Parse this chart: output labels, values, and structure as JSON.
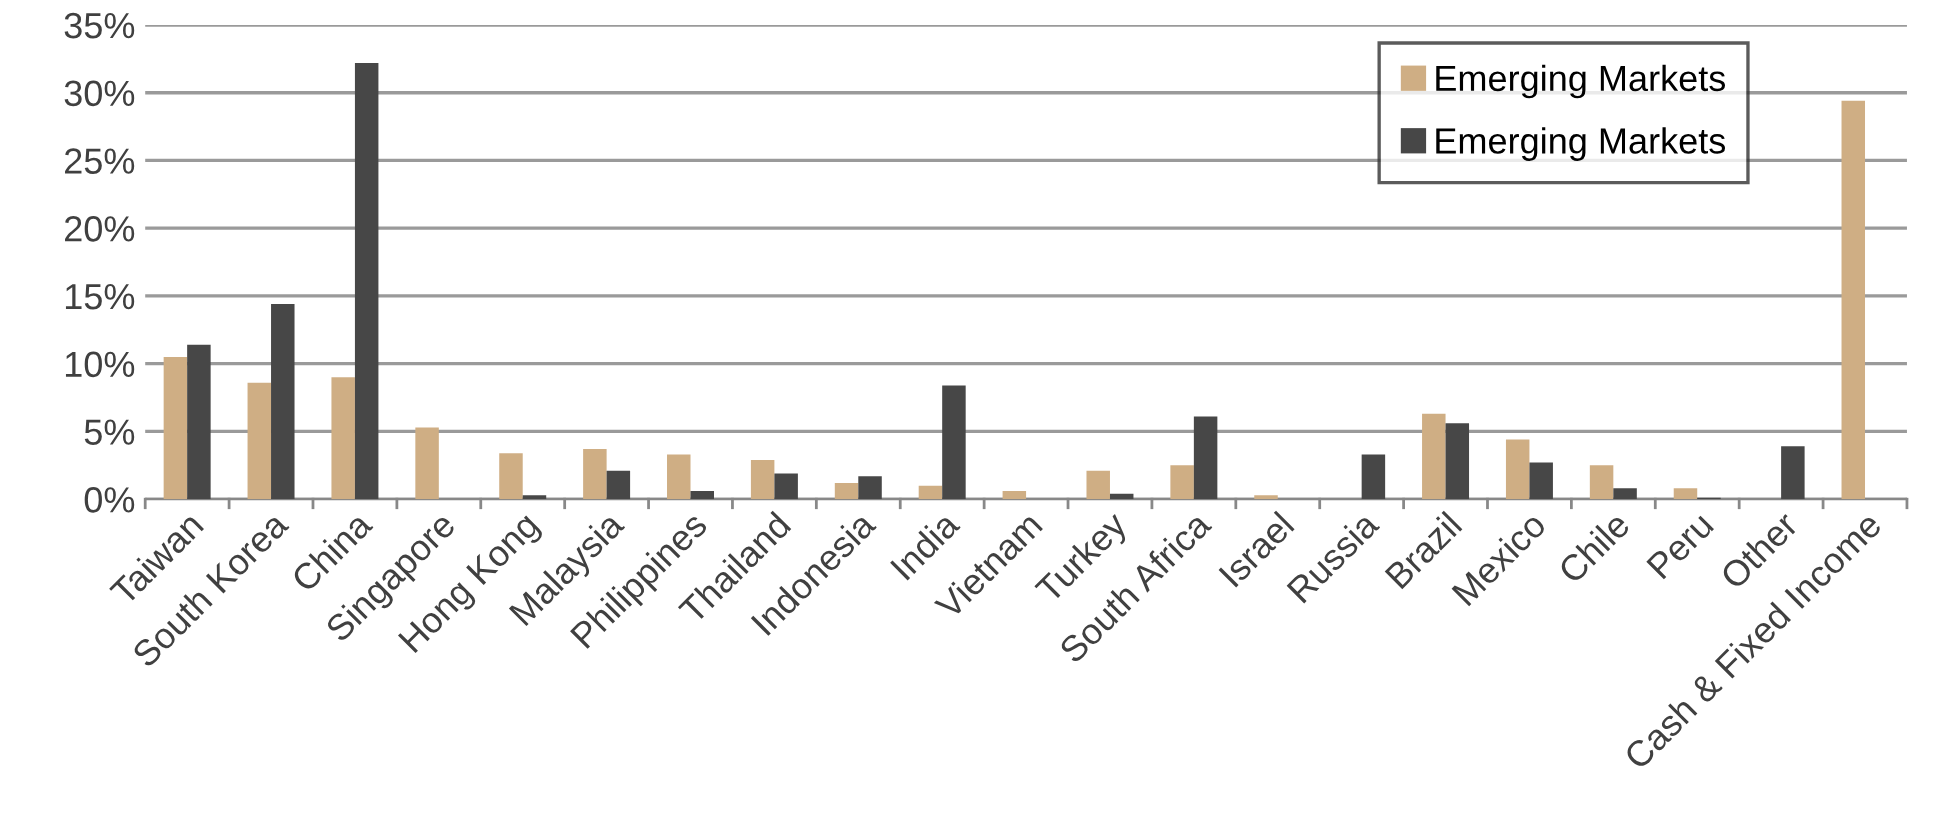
{
  "chart_data": {
    "type": "bar",
    "categories": [
      "Taiwan",
      "South Korea",
      "China",
      "Singapore",
      "Hong Kong",
      "Malaysia",
      "Philippines",
      "Thailand",
      "Indonesia",
      "India",
      "Vietnam",
      "Turkey",
      "South Africa",
      "Israel",
      "Russia",
      "Brazil",
      "Mexico",
      "Chile",
      "Peru",
      "Other",
      "Cash & Fixed Income"
    ],
    "series": [
      {
        "name": "Emerging Markets",
        "color": "#cfae84",
        "values": [
          10.5,
          8.6,
          9.0,
          5.3,
          3.4,
          3.7,
          3.3,
          2.9,
          1.2,
          1.0,
          0.6,
          2.1,
          2.5,
          0.3,
          0,
          6.3,
          4.4,
          2.5,
          0.8,
          0,
          29.4
        ]
      },
      {
        "name": "Emerging Markets",
        "color": "#474747",
        "values": [
          11.4,
          14.4,
          32.2,
          0,
          0.3,
          2.1,
          0.6,
          1.9,
          1.7,
          8.4,
          0,
          0.4,
          6.1,
          0,
          3.3,
          5.6,
          2.7,
          0.8,
          0.1,
          3.9,
          0
        ]
      }
    ],
    "ylim": [
      0,
      35
    ],
    "yticks": [
      {
        "value": 0,
        "label": "0%"
      },
      {
        "value": 5,
        "label": "5%"
      },
      {
        "value": 10,
        "label": "10%"
      },
      {
        "value": 15,
        "label": "15%"
      },
      {
        "value": 20,
        "label": "20%"
      },
      {
        "value": 25,
        "label": "25%"
      },
      {
        "value": 30,
        "label": "30%"
      },
      {
        "value": 35,
        "label": "35%"
      }
    ],
    "grid": "y",
    "legend": "top right"
  }
}
